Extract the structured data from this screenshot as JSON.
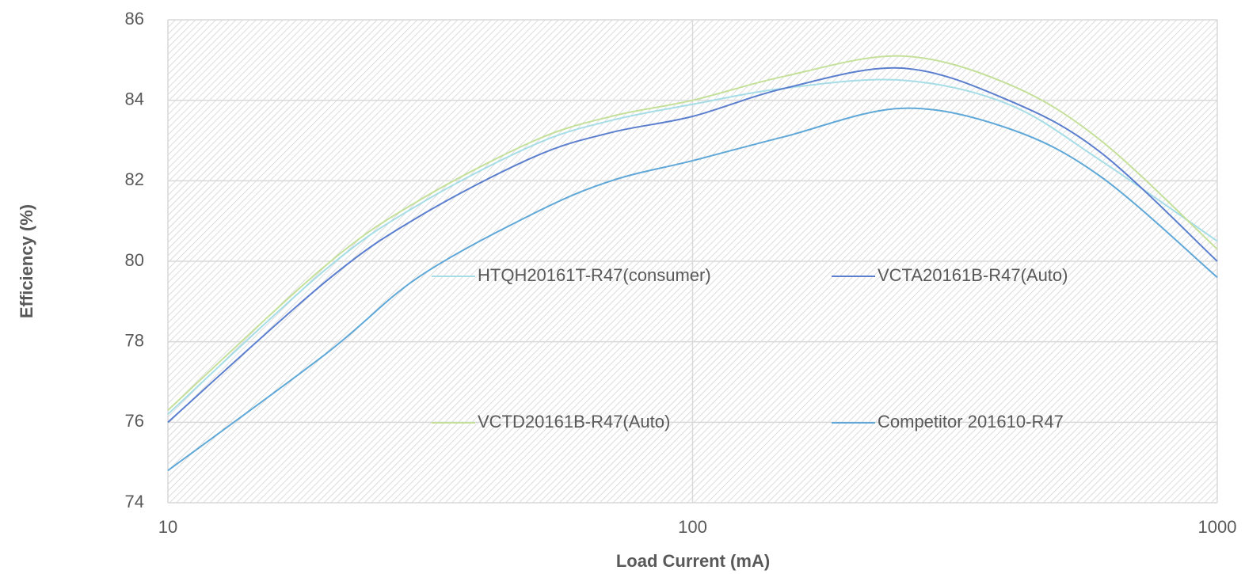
{
  "chart_data": {
    "type": "line",
    "x_label": "Load Current  (mA)",
    "y_label": "Efficiency (%)",
    "x": [
      10,
      20,
      30,
      50,
      70,
      100,
      150,
      250,
      400,
      600,
      1000
    ],
    "xscale": "log",
    "xlim": [
      10,
      1000
    ],
    "xticks": [
      10,
      100,
      1000
    ],
    "ylim": [
      74,
      86
    ],
    "yticks": [
      74,
      76,
      78,
      80,
      82,
      84,
      86
    ],
    "grid": true,
    "smooth": true,
    "series": [
      {
        "name": "HTQH20161T-R47(consumer)",
        "color": "#a6dde6",
        "values": [
          76.2,
          79.8,
          81.4,
          82.9,
          83.5,
          83.9,
          84.3,
          84.5,
          83.9,
          82.5,
          80.5
        ]
      },
      {
        "name": "VCTA20161B-R47(Auto)",
        "color": "#5b7fce",
        "values": [
          76.0,
          79.5,
          81.1,
          82.6,
          83.2,
          83.6,
          84.3,
          84.8,
          84.0,
          82.7,
          80.0
        ]
      },
      {
        "name": "VCTD20161B-R47(Auto)",
        "color": "#c5e09a",
        "values": [
          76.3,
          79.9,
          81.5,
          83.0,
          83.6,
          84.0,
          84.6,
          85.1,
          84.4,
          83.0,
          80.3
        ]
      },
      {
        "name": "Competitor 201610-R47",
        "color": "#5fa8d8",
        "values": [
          74.8,
          77.7,
          79.6,
          81.2,
          82.0,
          82.5,
          83.1,
          83.8,
          83.3,
          82.1,
          79.6
        ]
      }
    ]
  }
}
